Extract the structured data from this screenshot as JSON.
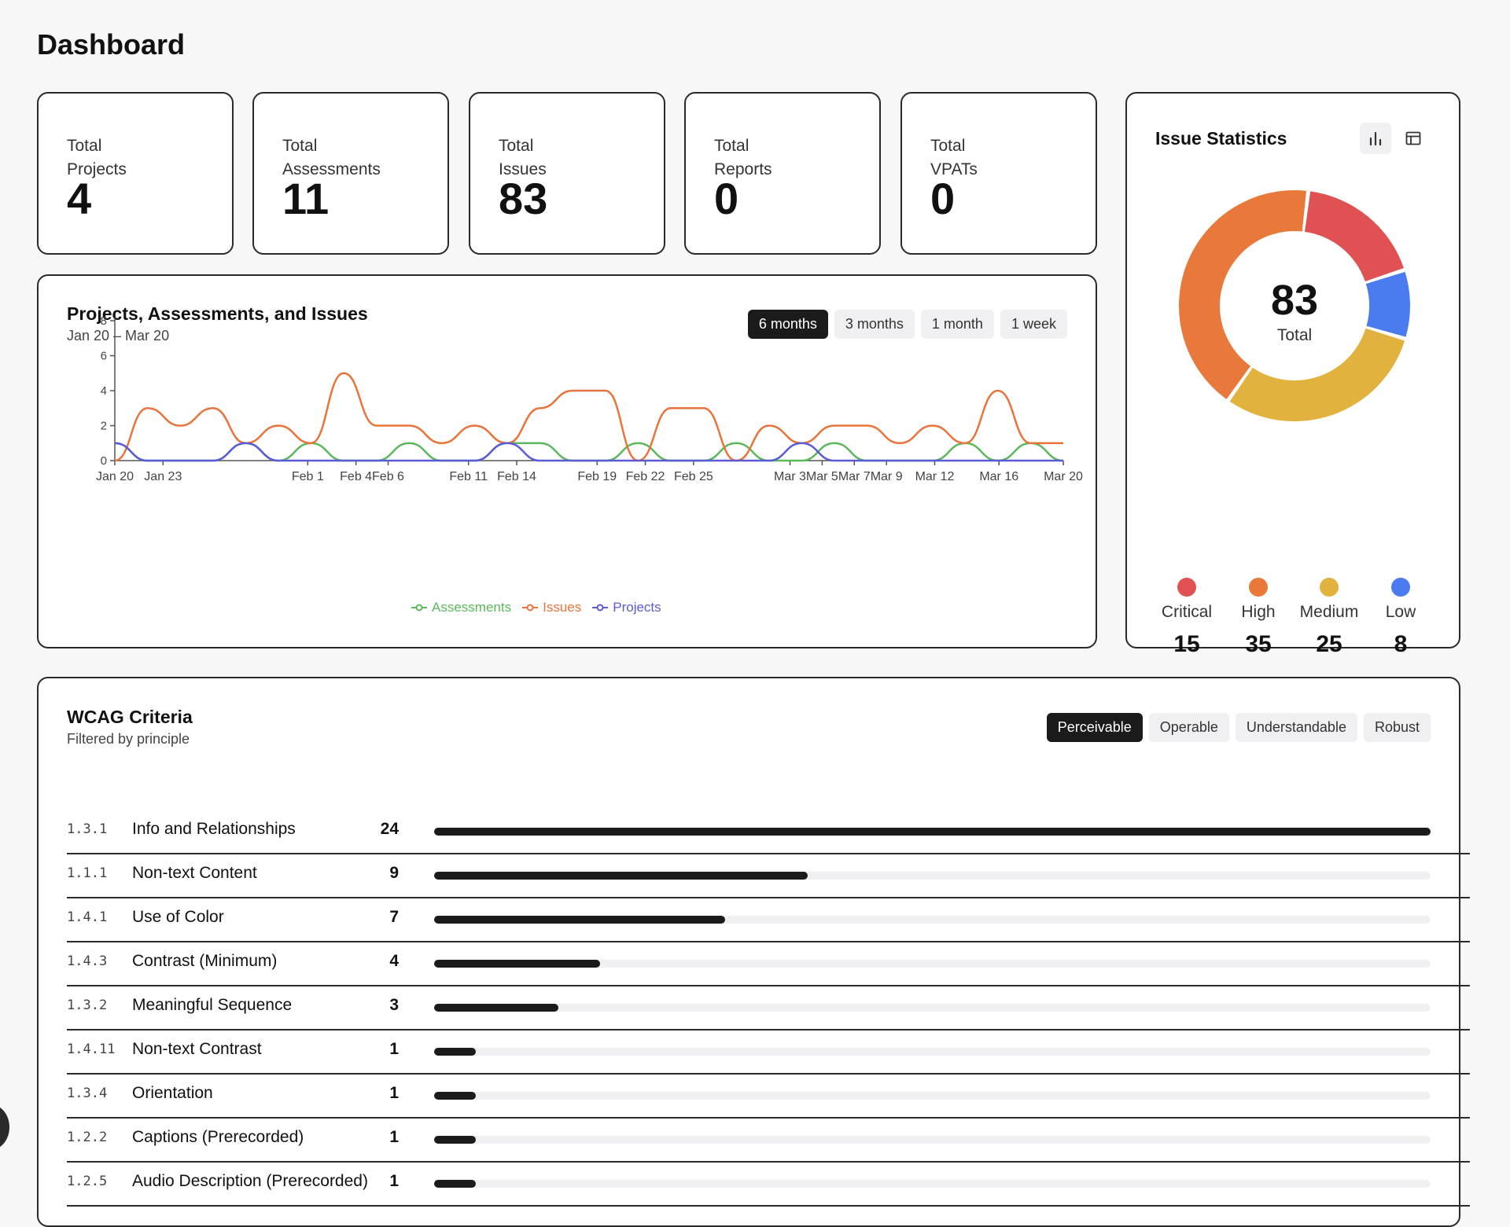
{
  "page": {
    "title": "Dashboard"
  },
  "stats": [
    {
      "line1": "Total",
      "line2": "Projects",
      "value": "4"
    },
    {
      "line1": "Total",
      "line2": "Assessments",
      "value": "11"
    },
    {
      "line1": "Total",
      "line2": "Issues",
      "value": "83"
    },
    {
      "line1": "Total",
      "line2": "Reports",
      "value": "0"
    },
    {
      "line1": "Total",
      "line2": "VPATs",
      "value": "0"
    }
  ],
  "trend": {
    "title": "Projects, Assessments, and Issues",
    "range_label": "Jan 20 – Mar 20",
    "ranges": [
      "6 months",
      "3 months",
      "1 month",
      "1 week"
    ],
    "active_range": "6 months"
  },
  "chart_data": {
    "type": "line",
    "x": [
      "Jan 20",
      "Jan 22",
      "Jan 24",
      "Jan 26",
      "Jan 28",
      "Jan 30",
      "Feb 1",
      "Feb 3",
      "Feb 5",
      "Feb 7",
      "Feb 9",
      "Feb 11",
      "Feb 13",
      "Feb 15",
      "Feb 17",
      "Feb 19",
      "Feb 21",
      "Feb 23",
      "Feb 25",
      "Feb 27",
      "Mar 1",
      "Mar 3",
      "Mar 5",
      "Mar 7",
      "Mar 9",
      "Mar 11",
      "Mar 13",
      "Mar 15",
      "Mar 17",
      "Mar 19"
    ],
    "xticks": [
      "Jan 20",
      "Jan 23",
      "Feb 1",
      "Feb 4",
      "Feb 6",
      "Feb 11",
      "Feb 14",
      "Feb 19",
      "Feb 22",
      "Feb 25",
      "Mar 3",
      "Mar 5",
      "Mar 7",
      "Mar 9",
      "Mar 12",
      "Mar 16",
      "Mar 20"
    ],
    "yticks": [
      0,
      2,
      4,
      6,
      8
    ],
    "ylim": [
      0,
      8
    ],
    "series": [
      {
        "name": "Assessments",
        "color": "#5cb85c",
        "values": [
          1,
          0,
          0,
          0,
          1,
          0,
          1,
          0,
          0,
          1,
          0,
          0,
          1,
          1,
          0,
          0,
          1,
          0,
          0,
          1,
          0,
          0,
          1,
          0,
          0,
          0,
          1,
          0,
          1,
          0
        ]
      },
      {
        "name": "Issues",
        "color": "#e8743b",
        "values": [
          0,
          3,
          2,
          3,
          1,
          2,
          1,
          5,
          2,
          2,
          1,
          2,
          1,
          3,
          4,
          4,
          0,
          3,
          3,
          0,
          2,
          1,
          2,
          2,
          1,
          2,
          1,
          4,
          1,
          1
        ]
      },
      {
        "name": "Projects",
        "color": "#5b5bd6",
        "values": [
          1,
          0,
          0,
          0,
          1,
          0,
          0,
          0,
          0,
          0,
          0,
          0,
          1,
          0,
          0,
          0,
          0,
          0,
          0,
          0,
          0,
          1,
          0,
          0,
          0,
          0,
          0,
          0,
          0,
          0
        ]
      }
    ],
    "legend_position": "bottom"
  },
  "issue_stats": {
    "title": "Issue Statistics",
    "total_value": "83",
    "total_label": "Total",
    "view_icons": [
      "bar-chart-icon",
      "table-icon"
    ],
    "severities": [
      {
        "name": "Critical",
        "count": 15,
        "color": "#e05252"
      },
      {
        "name": "High",
        "count": 35,
        "color": "#e8793a"
      },
      {
        "name": "Medium",
        "count": 25,
        "color": "#e2b23e"
      },
      {
        "name": "Low",
        "count": 8,
        "color": "#4a7cf0"
      }
    ]
  },
  "wcag": {
    "title": "WCAG Criteria",
    "subtitle": "Filtered by principle",
    "filters": [
      "Perceivable",
      "Operable",
      "Understandable",
      "Robust"
    ],
    "active_filter": "Perceivable",
    "max_count": 24,
    "rows": [
      {
        "code": "1.3.1",
        "name": "Info and Relationships",
        "count": 24
      },
      {
        "code": "1.1.1",
        "name": "Non-text Content",
        "count": 9
      },
      {
        "code": "1.4.1",
        "name": "Use of Color",
        "count": 7
      },
      {
        "code": "1.4.3",
        "name": "Contrast (Minimum)",
        "count": 4
      },
      {
        "code": "1.3.2",
        "name": "Meaningful Sequence",
        "count": 3
      },
      {
        "code": "1.4.11",
        "name": "Non-text Contrast",
        "count": 1
      },
      {
        "code": "1.3.4",
        "name": "Orientation",
        "count": 1
      },
      {
        "code": "1.2.2",
        "name": "Captions (Prerecorded)",
        "count": 1
      },
      {
        "code": "1.2.5",
        "name": "Audio Description (Prerecorded)",
        "count": 1
      }
    ]
  }
}
